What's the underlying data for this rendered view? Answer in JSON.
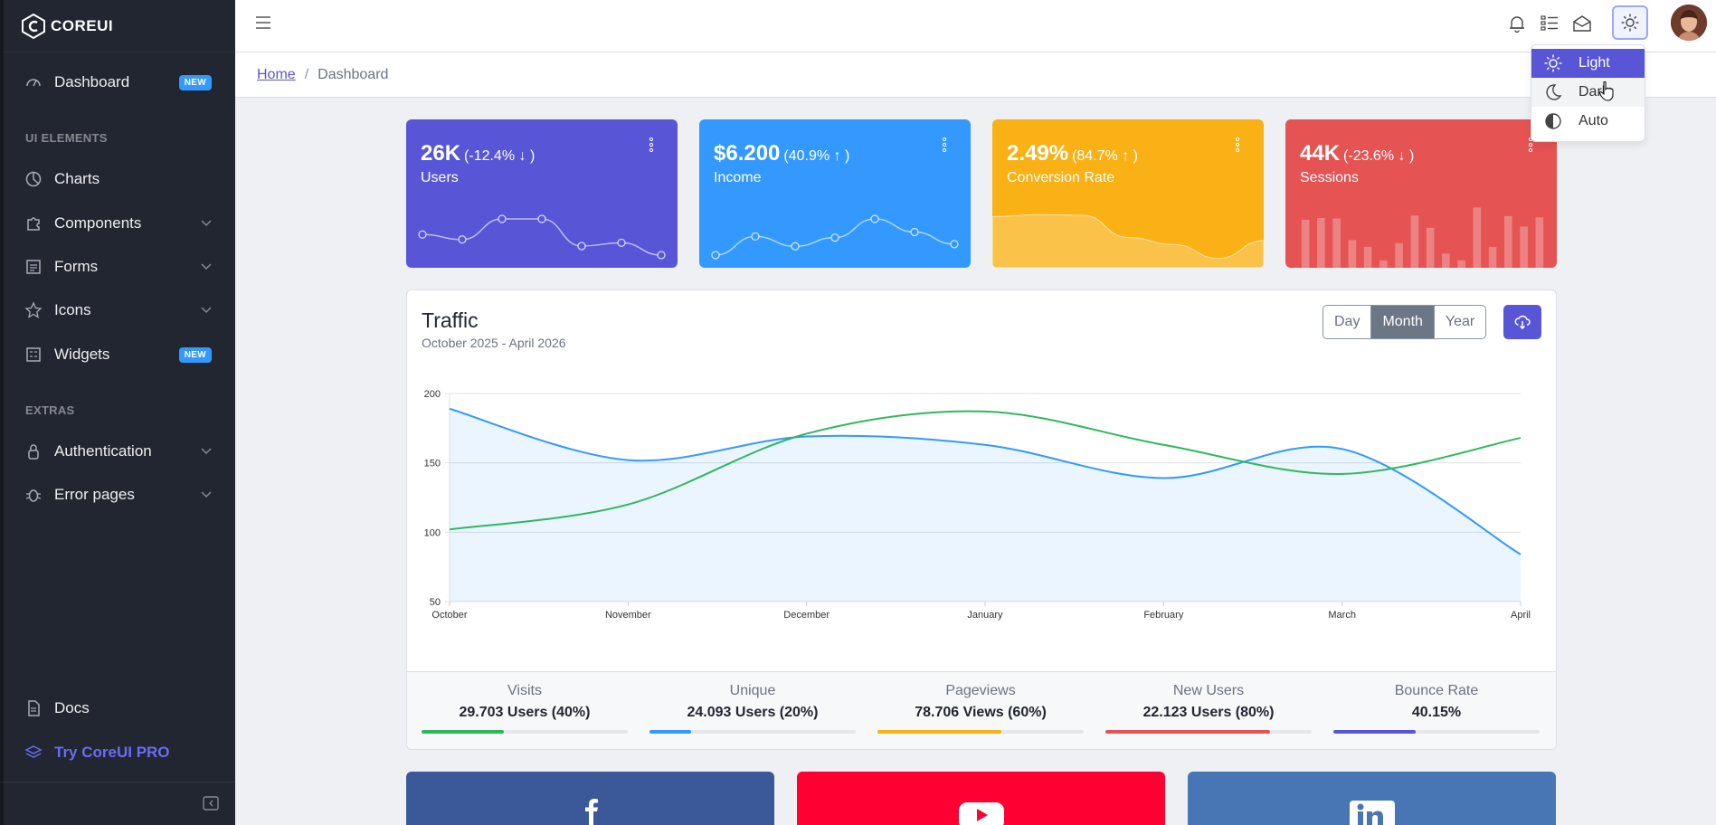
{
  "brand": {
    "name": "COREUI"
  },
  "sidebar": {
    "items": [
      {
        "label": "Dashboard",
        "badge": "NEW",
        "icon": "speedometer-icon"
      },
      {
        "label": "Charts",
        "icon": "chart-pie-icon"
      },
      {
        "label": "Components",
        "icon": "puzzle-icon"
      },
      {
        "label": "Forms",
        "icon": "notes-icon"
      },
      {
        "label": "Icons",
        "icon": "star-icon"
      },
      {
        "label": "Widgets",
        "badge": "NEW",
        "icon": "calculator-icon"
      },
      {
        "label": "Authentication",
        "icon": "lock-icon"
      },
      {
        "label": "Error pages",
        "icon": "bug-icon"
      },
      {
        "label": "Docs",
        "icon": "description-icon"
      },
      {
        "label": "Try CoreUI PRO",
        "icon": "layers-icon"
      }
    ],
    "titles": [
      "UI ELEMENTS",
      "EXTRAS"
    ]
  },
  "breadcrumb": {
    "home": "Home",
    "current": "Dashboard"
  },
  "theme_menu": {
    "items": [
      "Light",
      "Dark",
      "Auto"
    ],
    "selected": "Light",
    "hovered": "Dark"
  },
  "widgets": [
    {
      "value": "26K",
      "change": "(-12.4% ↓ )",
      "label": "Users",
      "color": "#5856d6",
      "chart": "line",
      "points": [
        65,
        59,
        84,
        84,
        51,
        55,
        40
      ]
    },
    {
      "value": "$6.200",
      "change": "(40.9% ↑ )",
      "label": "Income",
      "color": "#3399ff",
      "chart": "line",
      "points": [
        1,
        18,
        9,
        17,
        34,
        22,
        11
      ]
    },
    {
      "value": "2.49%",
      "change": "(84.7% ↑ )",
      "label": "Conversion Rate",
      "color": "#f9b115",
      "chart": "area",
      "points": [
        78,
        81,
        80,
        45,
        34,
        12,
        40
      ]
    },
    {
      "value": "44K",
      "change": "(-23.6% ↓ )",
      "label": "Sessions",
      "color": "#e55353",
      "chart": "bar",
      "points": [
        78,
        81,
        80,
        45,
        34,
        12,
        40,
        85,
        65,
        23,
        12,
        98,
        34,
        84,
        67,
        82
      ]
    }
  ],
  "traffic": {
    "title": "Traffic",
    "subtitle": "October 2025 - April 2026",
    "ranges": [
      "Day",
      "Month",
      "Year"
    ],
    "active_range": "Month"
  },
  "chart_data": {
    "type": "line",
    "categories": [
      "October",
      "November",
      "December",
      "January",
      "February",
      "March",
      "April"
    ],
    "ylim": [
      50,
      200
    ],
    "yticks": [
      50,
      100,
      150,
      200
    ],
    "grid": true,
    "series": [
      {
        "values": [
          189,
          152,
          169,
          163,
          139,
          160,
          84
        ],
        "color": "#3399ff",
        "fill": true
      },
      {
        "values": [
          102,
          120,
          171,
          187,
          163,
          142,
          168
        ],
        "color": "#2eb85c",
        "fill": false
      }
    ]
  },
  "stats": [
    {
      "label": "Visits",
      "value": "29.703 Users (40%)",
      "percent": 40,
      "color": "#2eb85c"
    },
    {
      "label": "Unique",
      "value": "24.093 Users (20%)",
      "percent": 20,
      "color": "#3399ff"
    },
    {
      "label": "Pageviews",
      "value": "78.706 Views (60%)",
      "percent": 60,
      "color": "#f9b115"
    },
    {
      "label": "New Users",
      "value": "22.123 Users (80%)",
      "percent": 80,
      "color": "#e55353"
    },
    {
      "label": "Bounce Rate",
      "value": "40.15%",
      "percent": 40,
      "color": "#5856d6"
    }
  ],
  "social": [
    {
      "icon": "facebook-icon",
      "color": "#3b5998"
    },
    {
      "icon": "youtube-icon",
      "color": "#ff0033"
    },
    {
      "icon": "linkedin-icon",
      "color": "#4875b4"
    }
  ]
}
